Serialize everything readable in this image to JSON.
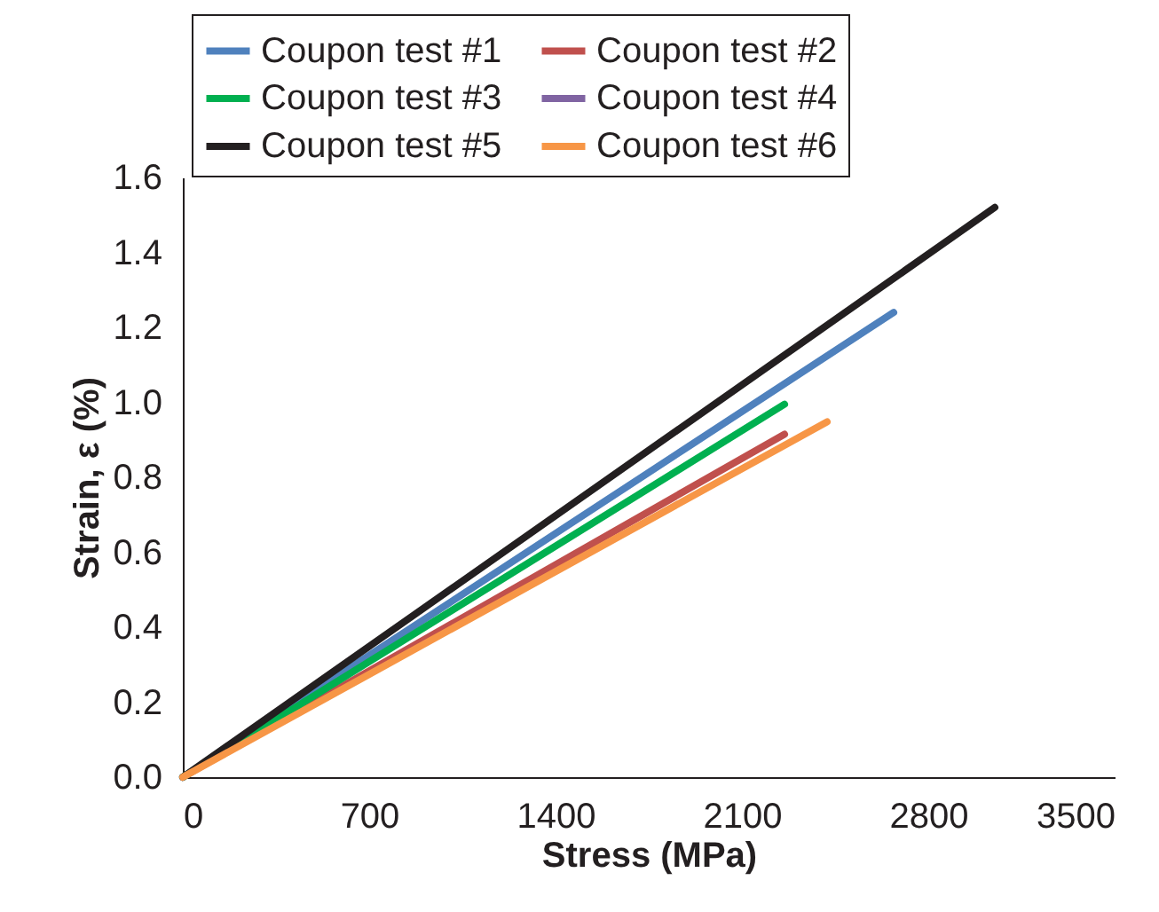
{
  "chart_data": {
    "type": "line",
    "xlabel": "Stress (MPa)",
    "ylabel": "Strain, ε (%)",
    "xlim": [
      0,
      3500
    ],
    "xticks": [
      0,
      700,
      1400,
      2100,
      2800,
      3500
    ],
    "ylim": [
      0,
      1.6
    ],
    "yticks": [
      {
        "value": 0,
        "label": "0.0"
      },
      0.2,
      0.4,
      0.6,
      0.8,
      {
        "value": 1,
        "label": "1.0"
      },
      1.2,
      1.4,
      1.6
    ],
    "grid": false,
    "legend": "top",
    "marker": "none",
    "line_style": "solid",
    "series": [
      {
        "name": "Coupon test #1",
        "color": "#4f81bd",
        "x": [
          0,
          2670
        ],
        "values": [
          0,
          1.24
        ]
      },
      {
        "name": "Coupon test #2",
        "color": "#c0504d",
        "x": [
          0,
          2260
        ],
        "values": [
          0,
          0.915
        ]
      },
      {
        "name": "Coupon test #3",
        "color": "#00b050",
        "x": [
          0,
          2260
        ],
        "values": [
          0,
          0.995
        ]
      },
      {
        "name": "Coupon test #4",
        "color": "#8064a2"
      },
      {
        "name": "Coupon test #5",
        "color": "#231f20",
        "x": [
          0,
          3050
        ],
        "values": [
          0,
          1.52
        ]
      },
      {
        "name": "Coupon test #6",
        "color": "#f79646",
        "x": [
          0,
          2420
        ],
        "values": [
          0,
          0.948
        ]
      }
    ]
  }
}
